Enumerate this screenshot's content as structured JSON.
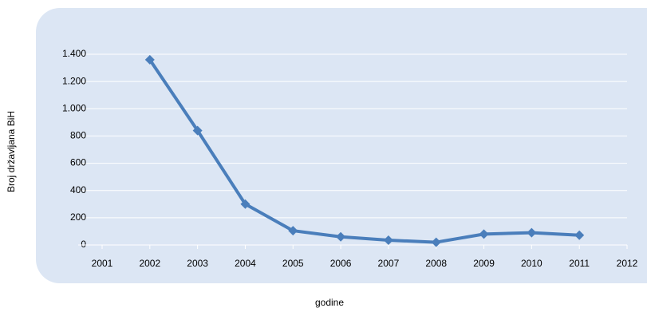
{
  "chart_data": {
    "type": "line",
    "x": [
      2002,
      2003,
      2004,
      2005,
      2006,
      2007,
      2008,
      2009,
      2010,
      2011
    ],
    "values": [
      1360,
      840,
      300,
      105,
      60,
      35,
      20,
      80,
      90,
      72
    ],
    "color": "#4a7ebb",
    "xlim": [
      2001,
      2012
    ],
    "xticks": [
      2001,
      2002,
      2003,
      2004,
      2005,
      2006,
      2007,
      2008,
      2009,
      2010,
      2011,
      2012
    ],
    "ylim": [
      0,
      1400
    ],
    "yticks": [
      0,
      200,
      400,
      600,
      800,
      {
        "value": 1000,
        "label": "1.000"
      },
      {
        "value": 1200,
        "label": "1.200"
      },
      {
        "value": 1400,
        "label": "1.400"
      }
    ],
    "grid": true,
    "xlabel": "godine",
    "ylabel": "Broj državljana BiH"
  }
}
